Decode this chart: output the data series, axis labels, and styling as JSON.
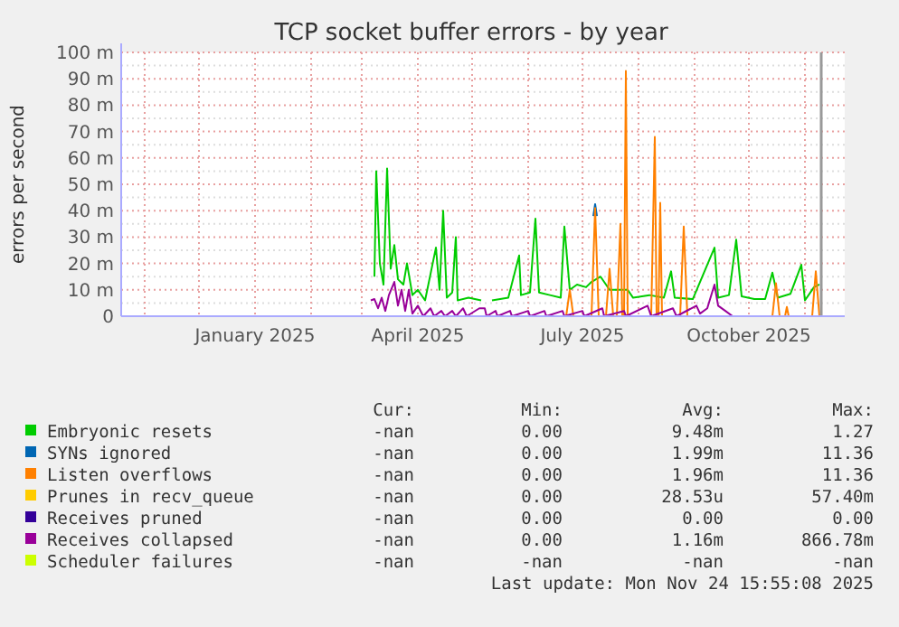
{
  "chart_data": {
    "type": "line",
    "title": "TCP socket buffer errors - by year",
    "ylabel": "errors per second",
    "xlim": [
      "2024-10-19",
      "2025-11-23"
    ],
    "xticks": [
      {
        "value": "2024-11-01",
        "label": null
      },
      {
        "value": "2024-12-01",
        "label": null
      },
      {
        "value": "2025-01-01",
        "label": "January 2025"
      },
      {
        "value": "2025-02-01",
        "label": null
      },
      {
        "value": "2025-03-01",
        "label": null
      },
      {
        "value": "2025-04-01",
        "label": "April 2025"
      },
      {
        "value": "2025-05-01",
        "label": null
      },
      {
        "value": "2025-06-01",
        "label": null
      },
      {
        "value": "2025-07-01",
        "label": "July 2025"
      },
      {
        "value": "2025-08-01",
        "label": null
      },
      {
        "value": "2025-09-01",
        "label": null
      },
      {
        "value": "2025-10-01",
        "label": "October 2025"
      },
      {
        "value": "2025-11-01",
        "label": null
      }
    ],
    "ylim": [
      0,
      100
    ],
    "yticks": [
      0,
      {
        "value": 5,
        "label": null
      },
      {
        "value": 10,
        "label": "10 m"
      },
      {
        "value": 15,
        "label": null
      },
      {
        "value": 20,
        "label": "20 m"
      },
      {
        "value": 25,
        "label": null
      },
      {
        "value": 30,
        "label": "30 m"
      },
      {
        "value": 35,
        "label": null
      },
      {
        "value": 40,
        "label": "40 m"
      },
      {
        "value": 45,
        "label": null
      },
      {
        "value": 50,
        "label": "50 m"
      },
      {
        "value": 55,
        "label": null
      },
      {
        "value": 60,
        "label": "60 m"
      },
      {
        "value": 65,
        "label": null
      },
      {
        "value": 70,
        "label": "70 m"
      },
      {
        "value": 75,
        "label": null
      },
      {
        "value": 80,
        "label": "80 m"
      },
      {
        "value": 85,
        "label": null
      },
      {
        "value": 90,
        "label": "90 m"
      },
      {
        "value": 95,
        "label": null
      },
      {
        "value": 100,
        "label": "100 m"
      }
    ],
    "grid": true,
    "legend": "bottom",
    "line_style": "solid",
    "ref_lines": [
      {
        "axis": "x",
        "value": "2025-11-10",
        "color": "#999999"
      }
    ],
    "series": [
      {
        "name": "Embryonic resets",
        "color": "#00cc00",
        "x": [
          "2025-03-08",
          "2025-03-09",
          "2025-03-11",
          "2025-03-13",
          "2025-03-15",
          "2025-03-17",
          "2025-03-19",
          "2025-03-21",
          "2025-03-24",
          "2025-03-26",
          "2025-03-29",
          "2025-04-01",
          "2025-04-05",
          "2025-04-11",
          "2025-04-13",
          "2025-04-15",
          "2025-04-17",
          "2025-04-20",
          "2025-04-22",
          "2025-04-23",
          "2025-04-29",
          "2025-05-06",
          "2025-05-09",
          "2025-05-12",
          "2025-05-21",
          "2025-05-27",
          "2025-05-28",
          "2025-06-02",
          "2025-06-05",
          "2025-06-07",
          "2025-06-13",
          "2025-06-19",
          "2025-06-21",
          "2025-06-24",
          "2025-06-28",
          "2025-07-03",
          "2025-07-06",
          "2025-07-11",
          "2025-07-16",
          "2025-07-26",
          "2025-07-29",
          "2025-08-07",
          "2025-08-15",
          "2025-08-19",
          "2025-08-21",
          "2025-08-31",
          "2025-09-12",
          "2025-09-14",
          "2025-09-20",
          "2025-09-24",
          "2025-09-27",
          "2025-10-04",
          "2025-10-10",
          "2025-10-14",
          "2025-10-17",
          "2025-10-24",
          "2025-10-30",
          "2025-11-01",
          "2025-11-06",
          "2025-11-09"
        ],
        "values": [
          15,
          55,
          20,
          12,
          56,
          18,
          27,
          14,
          12,
          20,
          8,
          10,
          6,
          26,
          10,
          40,
          7,
          9,
          30,
          6,
          7,
          6,
          null,
          6,
          7,
          23,
          8,
          9,
          37,
          9,
          8,
          7,
          34,
          10,
          12,
          11,
          13,
          15,
          10,
          10,
          7,
          8,
          7,
          17,
          7,
          6.5,
          26,
          7,
          8,
          29,
          7.5,
          6.5,
          6.5,
          16.5,
          7,
          8.5,
          19.5,
          6,
          11,
          12
        ]
      },
      {
        "name": "SYNs ignored",
        "color": "#0066b3",
        "x": [
          "2025-07-07",
          "2025-07-08",
          "2025-07-09"
        ],
        "values": [
          38,
          42.5,
          38
        ]
      },
      {
        "name": "Listen overflows",
        "color": "#ff8000",
        "x": [
          "2025-06-22",
          "2025-06-24",
          "2025-06-26",
          "2025-07-06",
          "2025-07-08",
          "2025-07-10",
          "2025-07-14",
          "2025-07-16",
          "2025-07-18",
          "2025-07-20",
          "2025-07-22",
          "2025-07-23",
          "2025-07-24",
          "2025-07-25",
          "2025-07-26",
          "2025-08-08",
          "2025-08-10",
          "2025-08-11",
          "2025-08-12",
          "2025-08-13",
          "2025-08-14",
          "2025-08-24",
          "2025-08-26",
          "2025-08-28",
          "2025-10-14",
          "2025-10-16",
          "2025-10-18",
          "2025-10-21",
          "2025-10-22",
          "2025-10-23",
          "2025-11-05",
          "2025-11-07",
          "2025-11-09"
        ],
        "values": [
          0,
          10,
          0,
          0,
          41,
          0,
          0,
          18,
          0,
          0,
          35,
          0,
          0,
          93,
          0,
          0,
          68,
          0,
          0,
          43,
          0,
          0,
          34,
          0,
          0,
          12.5,
          0,
          0,
          3.5,
          0,
          0,
          17,
          0
        ]
      },
      {
        "name": "Prunes in recv_queue",
        "color": "#ffcc00"
      },
      {
        "name": "Receives pruned",
        "color": "#330099"
      },
      {
        "name": "Receives collapsed",
        "color": "#990099",
        "x": [
          "2025-03-06",
          "2025-03-08",
          "2025-03-10",
          "2025-03-12",
          "2025-03-14",
          "2025-03-16",
          "2025-03-19",
          "2025-03-21",
          "2025-03-23",
          "2025-03-25",
          "2025-03-27",
          "2025-03-29",
          "2025-04-01",
          "2025-04-04",
          "2025-04-08",
          "2025-04-10",
          "2025-04-14",
          "2025-04-16",
          "2025-04-20",
          "2025-04-22",
          "2025-04-26",
          "2025-04-28",
          "2025-05-05",
          "2025-05-08",
          "2025-05-09",
          "2025-05-14",
          "2025-05-15",
          "2025-05-22",
          "2025-05-23",
          "2025-06-01",
          "2025-06-02",
          "2025-06-10",
          "2025-06-11",
          "2025-06-20",
          "2025-06-21",
          "2025-07-01",
          "2025-07-02",
          "2025-07-12",
          "2025-07-13",
          "2025-07-24",
          "2025-07-25",
          "2025-08-06",
          "2025-08-08",
          "2025-08-20",
          "2025-08-22",
          "2025-09-02",
          "2025-09-04",
          "2025-09-08",
          "2025-09-12",
          "2025-09-14",
          "2025-09-18",
          "2025-09-22"
        ],
        "values": [
          6,
          6.5,
          3,
          7,
          2,
          8,
          13,
          4,
          10,
          2,
          10,
          1,
          4,
          0,
          3,
          0,
          2,
          0,
          2,
          0,
          3,
          0,
          3,
          3,
          0,
          2,
          0,
          2,
          0,
          2,
          0,
          2,
          0,
          2,
          0,
          2,
          0,
          3,
          0,
          2,
          0,
          4,
          0,
          3,
          0,
          4,
          1,
          3,
          12,
          4,
          2,
          0
        ]
      },
      {
        "name": "Scheduler failures",
        "color": "#ccff00"
      }
    ],
    "annotations": [
      "Cur:",
      "Min:",
      "Avg:",
      "Max:",
      "-nan",
      "0.00",
      "9.48m",
      "1.27",
      "-nan",
      "0.00",
      "1.99m",
      "11.36",
      "-nan",
      "0.00",
      "1.96m",
      "11.36",
      "-nan",
      "0.00",
      "28.53u",
      "57.40m",
      "-nan",
      "0.00",
      "0.00",
      "0.00",
      "-nan",
      "0.00",
      "1.16m",
      "866.78m",
      "-nan",
      "-nan",
      "-nan",
      "-nan",
      "Last update: Mon Nov 24 15:55:08 2025"
    ]
  }
}
